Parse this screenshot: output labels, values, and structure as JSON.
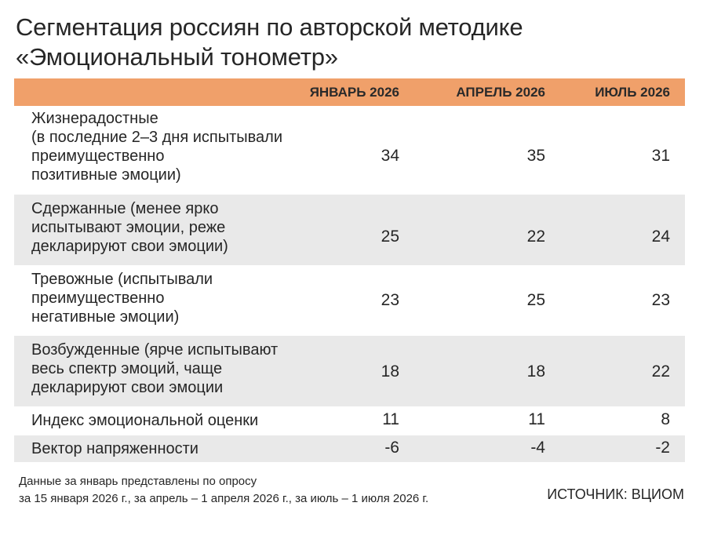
{
  "title": {
    "line1": "Сегментация россиян по авторской методике",
    "line2": "«Эмоциональный тонометр»"
  },
  "table": {
    "columns": [
      "ЯНВАРЬ 2026",
      "АПРЕЛЬ 2026",
      "ИЮЛЬ 2026"
    ],
    "rows": [
      {
        "label_lines": [
          "Жизнерадостные",
          "(в последние 2–3 дня испытывали",
          "преимущественно",
          "позитивные эмоции)"
        ],
        "values": [
          "34",
          "35",
          "31"
        ]
      },
      {
        "label_lines": [
          "Сдержанные (менее ярко",
          "испытывают эмоции, реже",
          "декларируют свои эмоции)"
        ],
        "values": [
          "25",
          "22",
          "24"
        ]
      },
      {
        "label_lines": [
          "Тревожные (испытывали",
          "преимущественно",
          "негативные эмоции)"
        ],
        "values": [
          "23",
          "25",
          "23"
        ]
      },
      {
        "label_lines": [
          "Возбужденные (ярче испытывают",
          "весь спектр эмоций, чаще",
          "декларируют свои эмоции"
        ],
        "values": [
          "18",
          "18",
          "22"
        ]
      },
      {
        "label_lines": [
          "Индекс эмоциональной оценки"
        ],
        "values": [
          "11",
          "11",
          "8"
        ]
      },
      {
        "label_lines": [
          "Вектор напряженности"
        ],
        "values": [
          "-6",
          "-4",
          "-2"
        ]
      }
    ]
  },
  "footnote": {
    "line1": "Данные за январь представлены по опросу",
    "line2": "за 15 января 2026 г., за апрель – 1 апреля 2026 г., за июль – 1 июля 2026 г."
  },
  "source": "ИСТОЧНИК: ВЦИОМ",
  "colors": {
    "header_bg": "#f0a06a",
    "shade_bg": "#e9e9e9",
    "text": "#262626"
  }
}
